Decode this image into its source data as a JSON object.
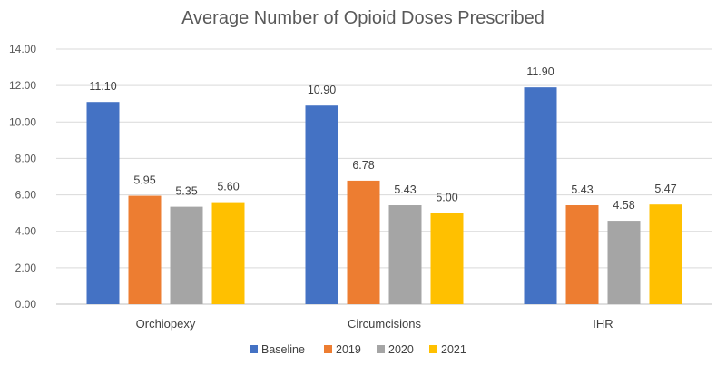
{
  "chart_data": {
    "type": "bar",
    "title": "Average Number of Opioid Doses Prescribed",
    "categories": [
      "Orchiopexy",
      "Circumcisions",
      "IHR"
    ],
    "series": [
      {
        "name": "Baseline",
        "color": "#4472c4",
        "values": [
          11.1,
          10.9,
          11.9
        ]
      },
      {
        "name": "2019",
        "color": "#ed7d31",
        "values": [
          5.95,
          6.78,
          5.43
        ]
      },
      {
        "name": "2020",
        "color": "#a5a5a5",
        "values": [
          5.35,
          5.43,
          4.58
        ]
      },
      {
        "name": "2021",
        "color": "#ffc000",
        "values": [
          5.6,
          5.0,
          5.47
        ]
      }
    ],
    "yticks": [
      "0.00",
      "2.00",
      "4.00",
      "6.00",
      "8.00",
      "10.00",
      "12.00",
      "14.00"
    ],
    "ylim": [
      0,
      14
    ],
    "xlabel": "",
    "ylabel": "",
    "grid": true,
    "legend": "bottom"
  }
}
